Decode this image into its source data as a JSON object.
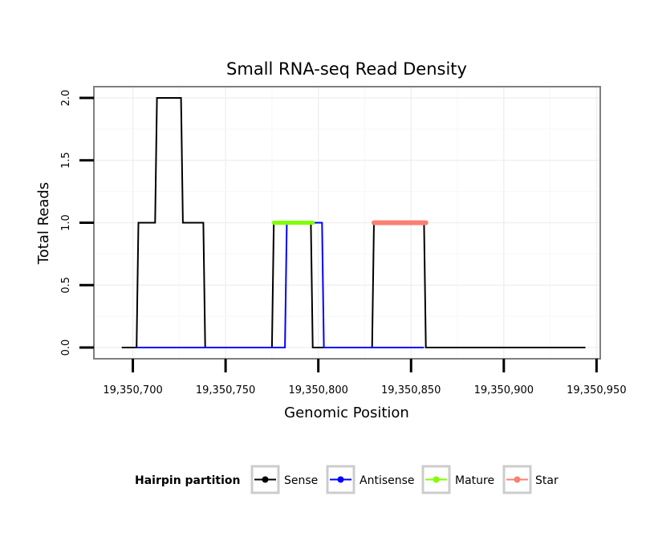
{
  "chart_data": {
    "type": "line",
    "title": "Small RNA-seq Read Density",
    "xlabel": "Genomic Position",
    "ylabel": "Total Reads",
    "xlim": [
      19350679,
      19350952
    ],
    "ylim": [
      -0.09,
      2.09
    ],
    "x_ticks": [
      19350700,
      19350750,
      19350800,
      19350850,
      19350900,
      19350950
    ],
    "x_tick_labels": [
      "19,350,700",
      "19,350,750",
      "19,350,800",
      "19,350,850",
      "19,350,900",
      "19,350,950"
    ],
    "y_ticks": [
      0,
      0.5,
      1,
      1.5,
      2
    ],
    "y_tick_labels": [
      "0.0",
      "0.5",
      "1.0",
      "1.5",
      "2.0"
    ],
    "grid": true,
    "legend": {
      "title": "Hairpin partition",
      "placement": "bottom",
      "entries": [
        {
          "name": "Sense",
          "color": "#000000"
        },
        {
          "name": "Antisense",
          "color": "#0000ff"
        },
        {
          "name": "Mature",
          "color": "#7fff00"
        },
        {
          "name": "Star",
          "color": "#fa8072"
        }
      ]
    },
    "series": [
      {
        "name": "Sense",
        "color": "#000000",
        "x": [
          19350694,
          19350702,
          19350703,
          19350712,
          19350713,
          19350726,
          19350727,
          19350738,
          19350739,
          19350775,
          19350776,
          19350796,
          19350797,
          19350829,
          19350830,
          19350857,
          19350858,
          19350944
        ],
        "y": [
          0,
          0,
          1,
          1,
          2,
          2,
          1,
          1,
          0,
          0,
          1,
          1,
          0,
          0,
          1,
          1,
          0,
          0
        ]
      },
      {
        "name": "Antisense",
        "color": "#0000ff",
        "x": [
          19350702,
          19350782,
          19350783,
          19350802,
          19350803,
          19350857
        ],
        "y": [
          0,
          0,
          1,
          1,
          0,
          0
        ]
      },
      {
        "name": "Mature",
        "color": "#7fff00",
        "x": [
          19350776,
          19350797
        ],
        "y": [
          1,
          1
        ]
      },
      {
        "name": "Star",
        "color": "#fa8072",
        "x": [
          19350830,
          19350858
        ],
        "y": [
          1,
          1
        ]
      }
    ]
  }
}
